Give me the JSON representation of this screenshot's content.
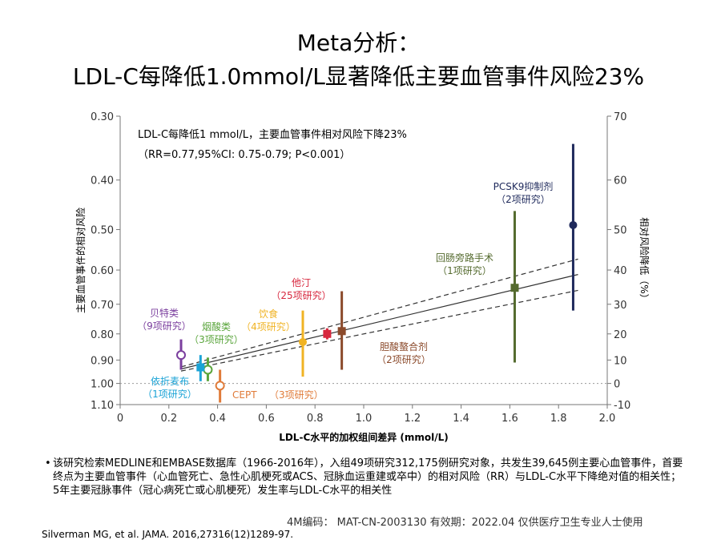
{
  "title": {
    "line1": "Meta分析：",
    "line2": "LDL-C每降低1.0mmol/L显著降低主要血管事件风险23%"
  },
  "chart_data": {
    "type": "scatter",
    "xlabel": "LDL-C水平的加权组间差异 (mmol/L)",
    "ylabel_left": "主要血管事件的相对风险",
    "ylabel_right": "相对风险降低（%）",
    "xlim": [
      0,
      2.0
    ],
    "ylim": [
      0.3,
      1.1
    ],
    "log_y": true,
    "x_ticks": [
      "0",
      "0.2",
      "0.4",
      "0.6",
      "0.8",
      "1.0",
      "1.2",
      "1.4",
      "1.6",
      "1.8",
      "2.0"
    ],
    "y_ticks_left": [
      {
        "v": 0.3,
        "label": "0.30"
      },
      {
        "v": 0.4,
        "label": "0.40"
      },
      {
        "v": 0.5,
        "label": "0.50"
      },
      {
        "v": 0.6,
        "label": "0.60"
      },
      {
        "v": 0.7,
        "label": "0.70"
      },
      {
        "v": 0.8,
        "label": "0.80"
      },
      {
        "v": 0.9,
        "label": "0.90"
      },
      {
        "v": 1.0,
        "label": "1.00"
      },
      {
        "v": 1.1,
        "label": "1.10"
      }
    ],
    "y_ticks_right": [
      {
        "v": 0.3,
        "label": "70"
      },
      {
        "v": 0.4,
        "label": "60"
      },
      {
        "v": 0.5,
        "label": "50"
      },
      {
        "v": 0.6,
        "label": "40"
      },
      {
        "v": 0.7,
        "label": "30"
      },
      {
        "v": 0.8,
        "label": "20"
      },
      {
        "v": 0.9,
        "label": "10"
      },
      {
        "v": 1.0,
        "label": "0"
      },
      {
        "v": 1.1,
        "label": "-10"
      }
    ],
    "annotation": {
      "line1": "LDL-C每降低1 mmol/L，主要血管事件相对风险下降23%",
      "line2": "（RR=0.77,95%CI: 0.75-0.79; P<0.001）"
    },
    "regression": {
      "slope_log": -0.261,
      "ci_upper_log": -0.223,
      "ci_lower_log": -0.298,
      "x_range": [
        0.25,
        1.88
      ]
    },
    "groups": [
      {
        "name": "贝特类",
        "count": "（9项研究）",
        "x": 0.25,
        "y": 0.88,
        "lo": 0.82,
        "hi": 0.94,
        "color": "#7b3f9e",
        "marker": "circle-open"
      },
      {
        "name": "烟酸类",
        "count": "（3项研究）",
        "x": 0.36,
        "y": 0.94,
        "lo": 0.89,
        "hi": 0.99,
        "color": "#5aa53c",
        "marker": "circle-open"
      },
      {
        "name": "依折麦布",
        "count": "（1项研究）",
        "x": 0.33,
        "y": 0.93,
        "lo": 0.88,
        "hi": 0.99,
        "color": "#1ba3d6",
        "marker": "square"
      },
      {
        "name": "CEPT",
        "count": "（3项研究）",
        "x": 0.41,
        "y": 1.01,
        "lo": 0.94,
        "hi": 1.09,
        "color": "#e07b39",
        "marker": "circle-open"
      },
      {
        "name": "饮食",
        "count": "（4项研究）",
        "x": 0.75,
        "y": 0.83,
        "lo": 0.72,
        "hi": 0.97,
        "color": "#f0b323",
        "marker": "circle"
      },
      {
        "name": "他汀",
        "count": "（25项研究）",
        "x": 0.85,
        "y": 0.8,
        "lo": 0.78,
        "hi": 0.82,
        "color": "#d7263d",
        "marker": "square"
      },
      {
        "name": "胆酸螯合剂",
        "count": "（2项研究）",
        "x": 0.91,
        "y": 0.79,
        "lo": 0.66,
        "hi": 0.94,
        "color": "#8b4a2b",
        "marker": "square"
      },
      {
        "name": "回肠旁路手术",
        "count": "（1项研究）",
        "x": 1.62,
        "y": 0.65,
        "lo": 0.46,
        "hi": 0.91,
        "color": "#556b2f",
        "marker": "square"
      },
      {
        "name": "PCSK9抑制剂",
        "count": "（2项研究）",
        "x": 1.86,
        "y": 0.49,
        "lo": 0.34,
        "hi": 0.72,
        "color": "#1f2a5c",
        "marker": "circle"
      }
    ]
  },
  "bullet": "该研究检索MEDLINE和EMBASE数据库（1966-2016年），入组49项研究312,175例研究对象，共发生39,645例主要心血管事件，首要终点为主要血管事件（心血管死亡、急性心肌梗死或ACS、冠脉血运重建或卒中）的相对风险（RR）与LDL-C水平下降绝对值的相关性；5年主要冠脉事件（冠心病死亡或心肌梗死）发生率与LDL-C水平的相关性",
  "code": "4M编码：   MAT-CN-2003130   有效期：2022.04   仅供医疗卫生专业人士使用",
  "reference": "Silverman MG, et al. JAMA. 2016,27316(12)1289-97."
}
